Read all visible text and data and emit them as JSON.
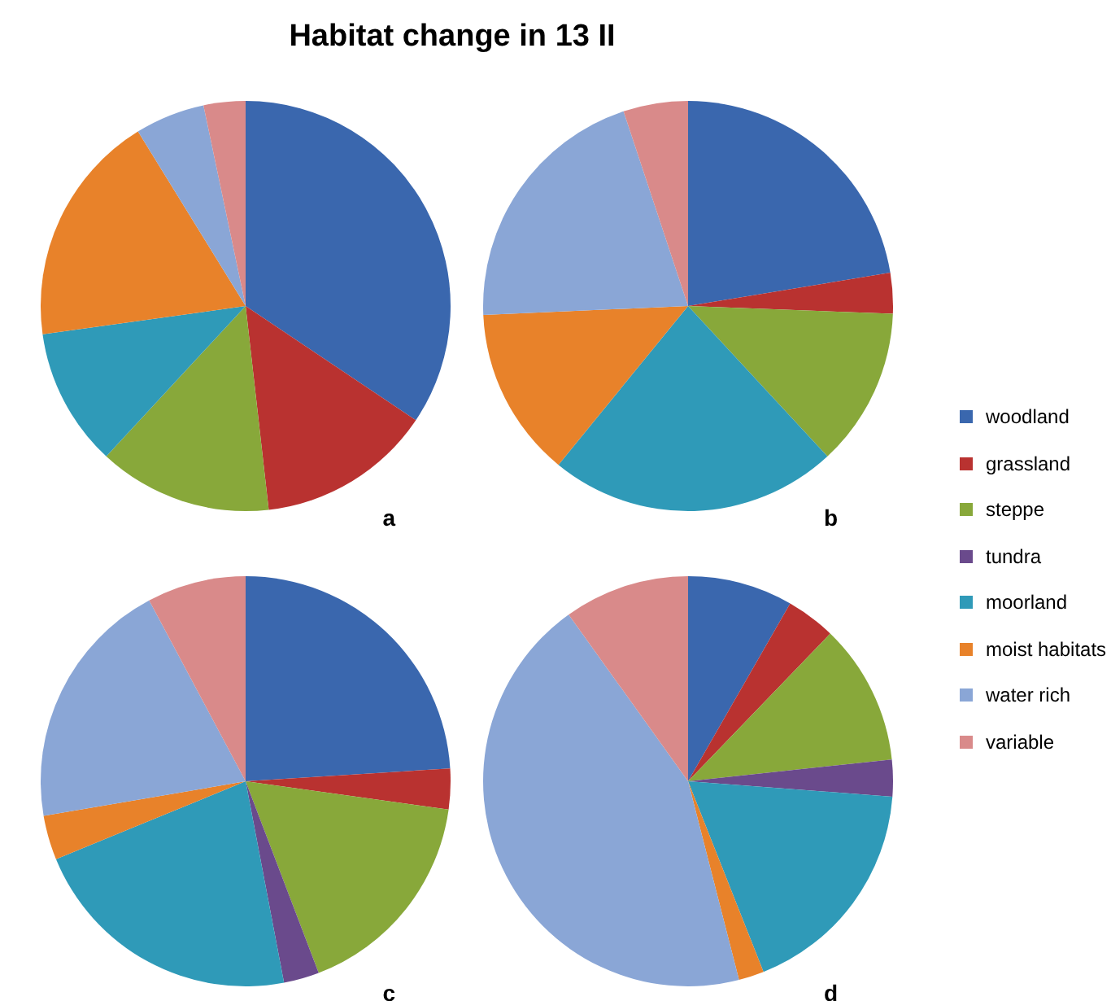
{
  "chart_data": {
    "type": "pie",
    "title": "Habitat change in 13 II",
    "categories": [
      "woodland",
      "grassland",
      "steppe",
      "tundra",
      "moorland",
      "moist habitats",
      "water rich",
      "variable"
    ],
    "colors": [
      "#3a67ae",
      "#b93230",
      "#88a83a",
      "#6a4a8c",
      "#2f9ab8",
      "#e8822a",
      "#8aa6d6",
      "#d98a8a"
    ],
    "legend": "right",
    "series": [
      {
        "name": "a",
        "values": [
          34.4,
          13.8,
          13.7,
          0,
          10.9,
          18.4,
          5.5,
          3.3
        ]
      },
      {
        "name": "b",
        "values": [
          22.4,
          3.2,
          12.5,
          0,
          22.8,
          13.4,
          20.6,
          5.1
        ]
      },
      {
        "name": "c",
        "values": [
          24,
          3.2,
          17,
          2.8,
          21.8,
          3.5,
          19.9,
          7.8
        ]
      },
      {
        "name": "d",
        "values": [
          8.3,
          3.9,
          11.1,
          2.9,
          17.8,
          2,
          44.1,
          9.9
        ]
      }
    ]
  }
}
